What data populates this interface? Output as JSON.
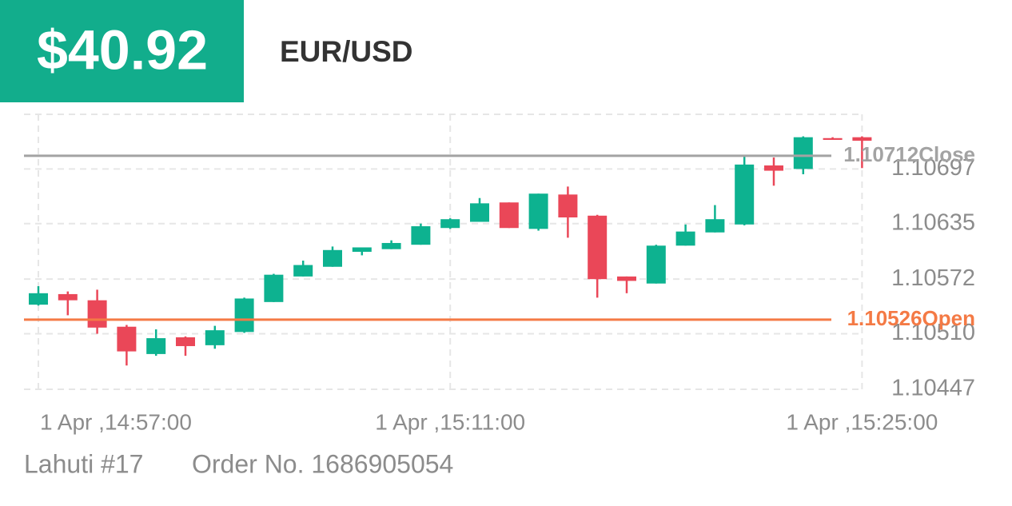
{
  "header": {
    "price": "$40.92",
    "pair": "EUR/USD"
  },
  "chart_data": {
    "type": "candlestick",
    "categories": [
      "1 Apr ,14:57:00",
      null,
      null,
      null,
      null,
      null,
      null,
      null,
      null,
      null,
      null,
      null,
      null,
      null,
      "1 Apr ,15:11:00",
      null,
      null,
      null,
      null,
      null,
      null,
      null,
      null,
      null,
      null,
      null,
      null,
      null,
      "1 Apr ,15:25:00"
    ],
    "open": [
      1.10543,
      1.10555,
      1.10548,
      1.10518,
      1.10487,
      1.10506,
      1.10497,
      1.10512,
      1.10546,
      1.10575,
      1.10586,
      1.10603,
      1.10606,
      1.10611,
      1.1063,
      1.10637,
      1.10659,
      1.10629,
      1.10668,
      1.10644,
      1.10575,
      1.10567,
      1.1061,
      1.10625,
      1.10634,
      1.10701,
      1.10697,
      1.10732,
      1.10733
    ],
    "high": [
      1.10564,
      1.10558,
      1.1056,
      1.1052,
      1.10515,
      1.10507,
      1.10519,
      1.10551,
      1.10578,
      1.10593,
      1.10609,
      1.10608,
      1.10616,
      1.10635,
      1.10641,
      1.10664,
      1.10659,
      1.10669,
      1.10677,
      1.10645,
      1.10575,
      1.10611,
      1.10634,
      1.10656,
      1.10712,
      1.1071,
      1.10734,
      1.10733,
      1.10734
    ],
    "low": [
      1.10542,
      1.10531,
      1.1051,
      1.10474,
      1.10485,
      1.10485,
      1.10493,
      1.10511,
      1.10546,
      1.10575,
      1.10586,
      1.10599,
      1.10606,
      1.10611,
      1.10629,
      1.10637,
      1.1063,
      1.10627,
      1.10619,
      1.10551,
      1.10556,
      1.10567,
      1.1061,
      1.10625,
      1.10633,
      1.10678,
      1.10691,
      1.1073,
      1.10698
    ],
    "close": [
      1.10556,
      1.10548,
      1.10517,
      1.1049,
      1.10505,
      1.10496,
      1.10514,
      1.1055,
      1.10577,
      1.10588,
      1.10605,
      1.10608,
      1.10613,
      1.10632,
      1.1064,
      1.10658,
      1.1063,
      1.10669,
      1.10642,
      1.10572,
      1.1057,
      1.1061,
      1.10626,
      1.1064,
      1.10702,
      1.10695,
      1.10733,
      1.1073,
      1.10729
    ],
    "up_color": "#0db290",
    "down_color": "#ea4758",
    "ylim": [
      1.10447,
      1.10759
    ],
    "yticks": [
      1.10447,
      {
        "value": 1.1051,
        "label": "1.10510"
      },
      1.10572,
      1.10635,
      1.10697
    ],
    "grid": true,
    "reference_lines": [
      {
        "value": 1.10712,
        "name": "Close",
        "color": "#a3a3a3"
      },
      {
        "value": 1.10526,
        "name": "Open",
        "color": "#f47a45"
      }
    ]
  },
  "footer": {
    "account": "Lahuti #17",
    "order": "Order No. 1686905054"
  }
}
